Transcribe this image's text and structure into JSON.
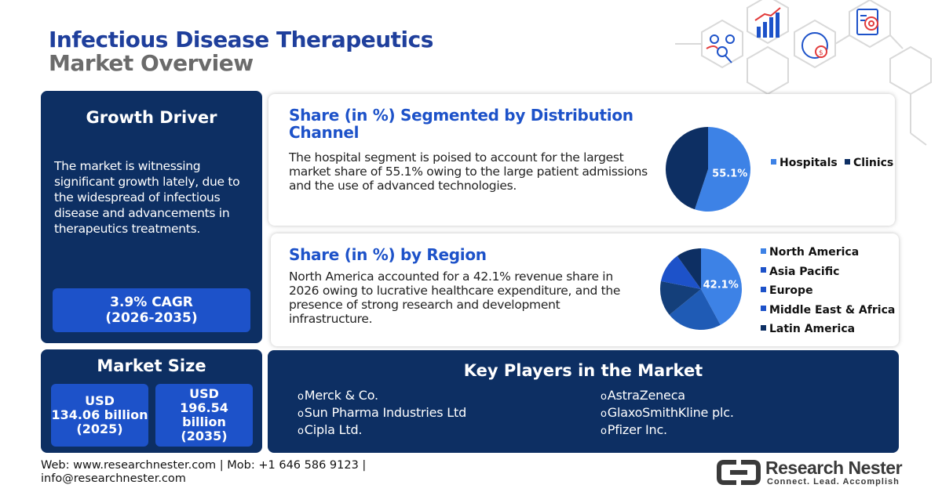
{
  "header": {
    "title_line1": "Infectious Disease Therapeutics",
    "title_line2": "Market Overview"
  },
  "icons": [
    "network-users-icon",
    "bar-chart-growth-icon",
    "target-clipboard-icon",
    "globe-dollar-icon"
  ],
  "growth_driver": {
    "heading": "Growth Driver",
    "text": "The market is witnessing significant growth lately, due to the widespread of infectious disease and advancements in therapeutics treatments.",
    "cagr_line1": "3.9% CAGR",
    "cagr_line2": "(2026-2035)"
  },
  "market_size": {
    "heading": "Market Size",
    "value1_line1": "USD",
    "value1_line2": "134.06 billion",
    "value1_line3": "(2025)",
    "value2_line1": "USD",
    "value2_line2": "196.54",
    "value2_line3": "billion",
    "value2_line4": "(2035)"
  },
  "distribution": {
    "heading": "Share (in %) Segmented by Distribution Channel",
    "text": "The hospital segment is poised to account for the largest market share of 55.1% owing to the large patient admissions and the use of advanced technologies."
  },
  "region": {
    "heading": "Share (in %) by Region",
    "text": "North America accounted for a 42.1% revenue share in 2026 owing to lucrative healthcare expenditure, and the presence of strong research and development infrastructure."
  },
  "chart_data": [
    {
      "type": "pie",
      "categories": [
        "Hospitals",
        "Clinics"
      ],
      "values": [
        55.1,
        44.9
      ],
      "colors": [
        "#3d82e6",
        "#0d2f63"
      ],
      "data_labels": [
        "55.1%",
        ""
      ],
      "legend_position": "right"
    },
    {
      "type": "pie",
      "categories": [
        "North America",
        "Asia Pacific",
        "Europe",
        "Middle East & Africa",
        "Latin America"
      ],
      "values": [
        42.1,
        22,
        14,
        12,
        9.9
      ],
      "colors": [
        "#3d82e6",
        "#1f5bb5",
        "#143f7a",
        "#1d52c9",
        "#0d2f63"
      ],
      "data_labels": [
        "42.1%",
        "",
        "",
        "",
        ""
      ],
      "legend_position": "right"
    }
  ],
  "key_players": {
    "heading": "Key Players in the Market",
    "bullet": "o",
    "left": [
      "Merck & Co.",
      "Sun Pharma Industries Ltd",
      "Cipla Ltd."
    ],
    "right": [
      "AstraZeneca",
      "GlaxoSmithKline plc.",
      "Pfizer Inc."
    ]
  },
  "footer": {
    "line1": "Web: www.researchnester.com | Mob: +1 646 586 9123 |",
    "line2": "info@researchnester.com"
  },
  "logo": {
    "name": "Research Nester",
    "tagline": "Connect. Lead. Accomplish"
  }
}
